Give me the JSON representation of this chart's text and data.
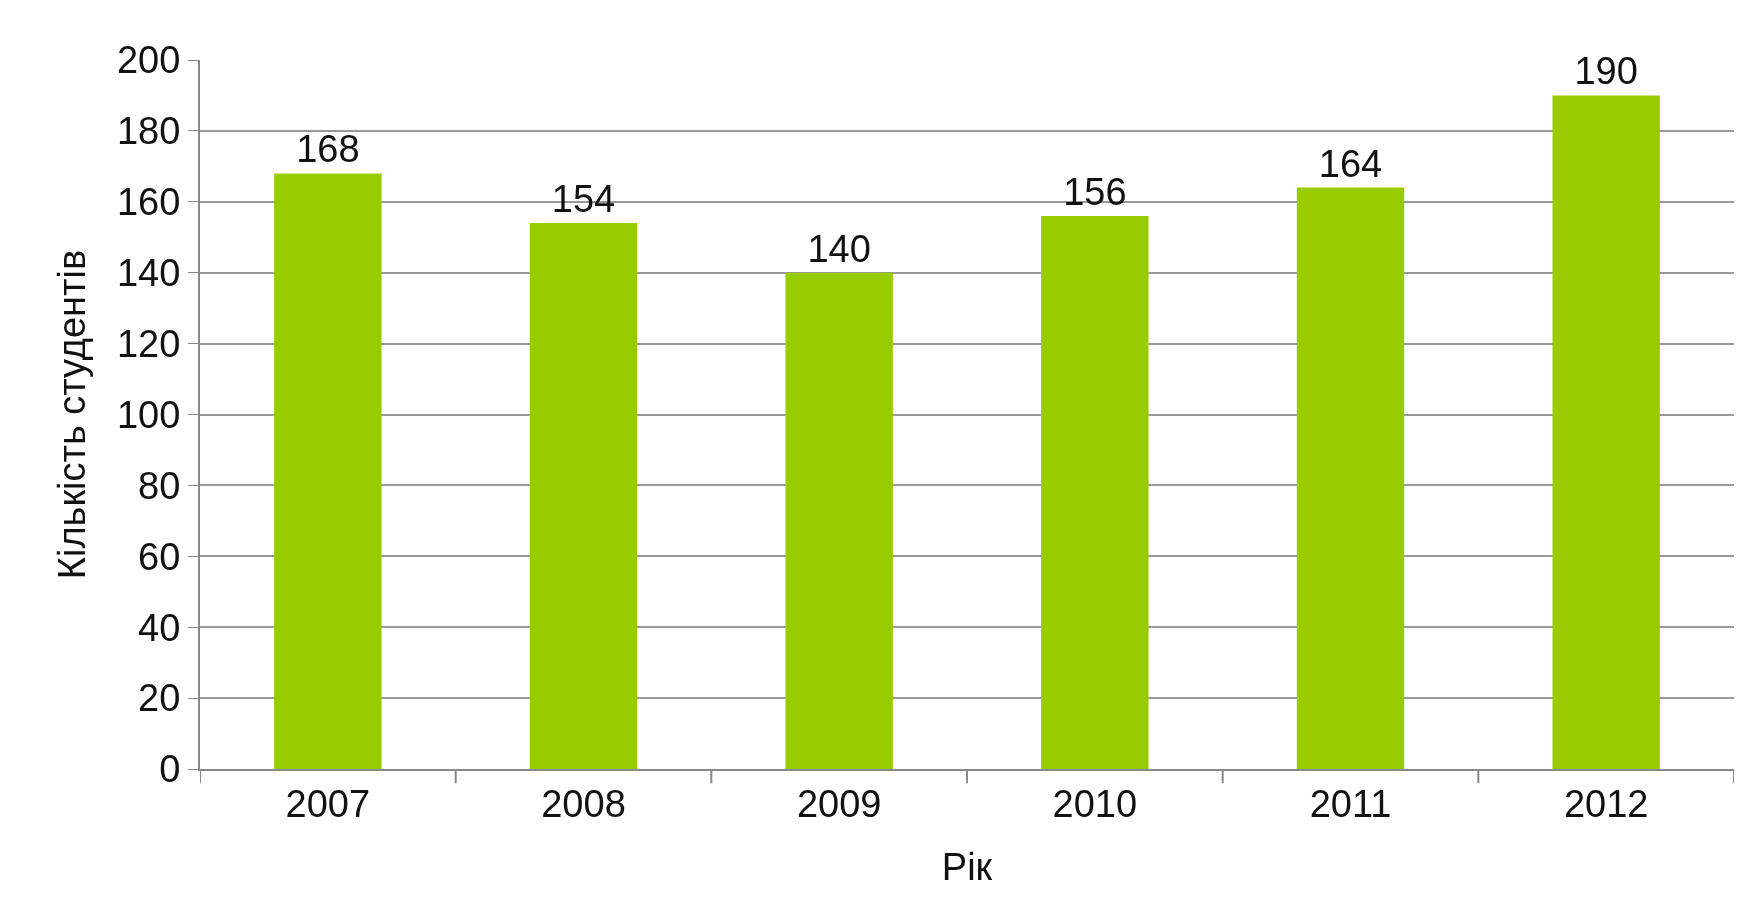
{
  "chart_data": {
    "type": "bar",
    "xlabel": "Рік",
    "ylabel": "Кількість студентів",
    "categories": [
      "2007",
      "2008",
      "2009",
      "2010",
      "2011",
      "2012"
    ],
    "values": [
      168,
      154,
      140,
      156,
      164,
      190
    ],
    "color": "#99cc00",
    "ylim": [
      0,
      200
    ],
    "yticks": [
      0,
      20,
      40,
      60,
      80,
      100,
      120,
      140,
      160,
      180,
      200
    ],
    "grid": "y",
    "data_labels": true
  }
}
